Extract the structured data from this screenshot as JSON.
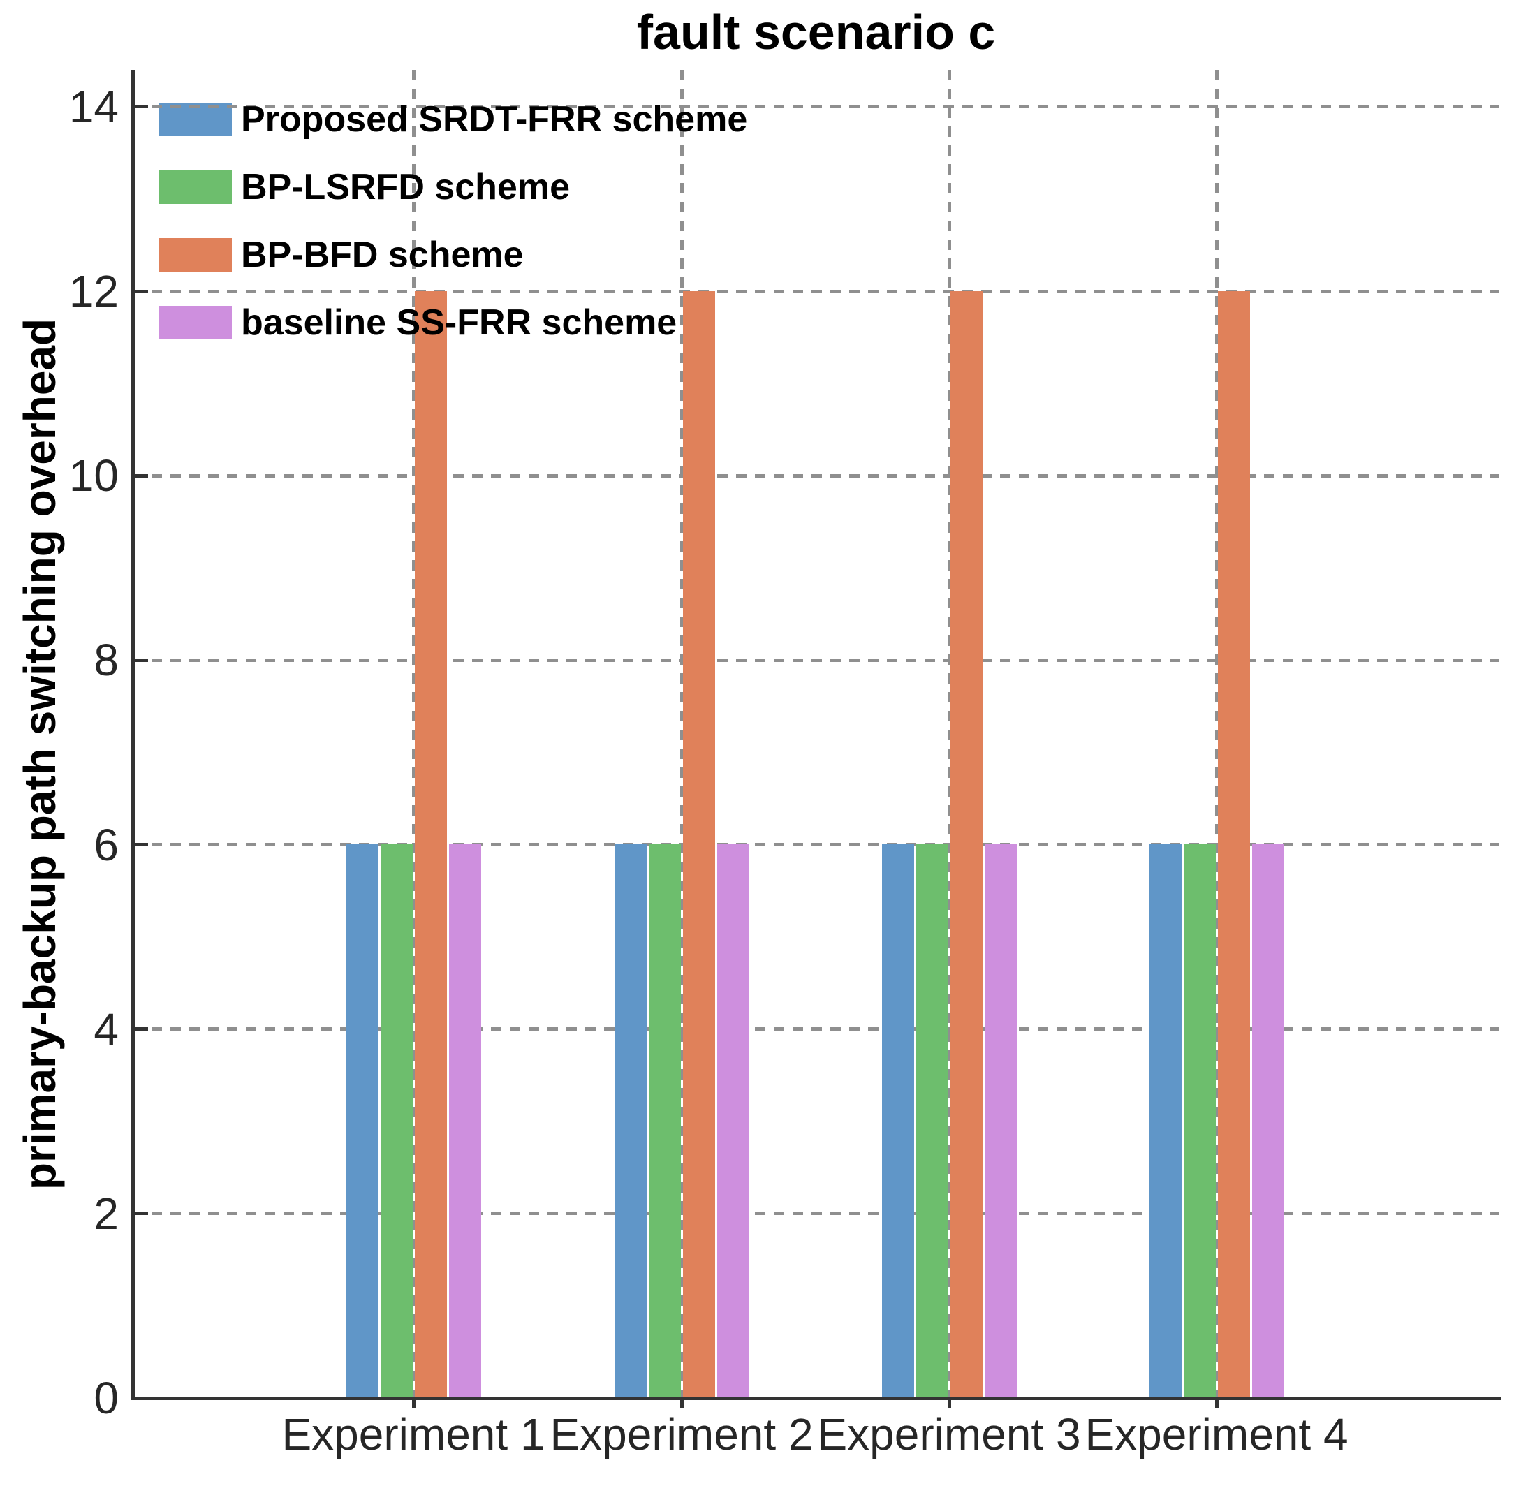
{
  "chart_data": {
    "type": "bar",
    "title": "fault scenario c",
    "ylabel": "primary-backup path switching overhead",
    "xlabel": "",
    "categories": [
      "Experiment 1",
      "Experiment 2",
      "Experiment 3",
      "Experiment 4"
    ],
    "series": [
      {
        "name": "Proposed SRDT-FRR scheme",
        "color": "#6096C8",
        "values": [
          6,
          6,
          6,
          6
        ]
      },
      {
        "name": "BP-LSRFD scheme",
        "color": "#6DBE6D",
        "values": [
          6,
          6,
          6,
          6
        ]
      },
      {
        "name": "BP-BFD scheme",
        "color": "#E0815A",
        "values": [
          12,
          12,
          12,
          12
        ]
      },
      {
        "name": "baseline SS-FRR scheme",
        "color": "#CE8FDE",
        "values": [
          6,
          6,
          6,
          6
        ]
      }
    ],
    "ylim": [
      0,
      14.4
    ],
    "yticks": [
      0,
      2,
      4,
      6,
      8,
      10,
      12,
      14
    ],
    "grid": true,
    "grid_style": "dashed",
    "grid_color": "#8f8f8f",
    "axis_color": "#333333",
    "tick_label_color": "#262626",
    "background": "#ffffff",
    "legend_position": "top-left"
  }
}
